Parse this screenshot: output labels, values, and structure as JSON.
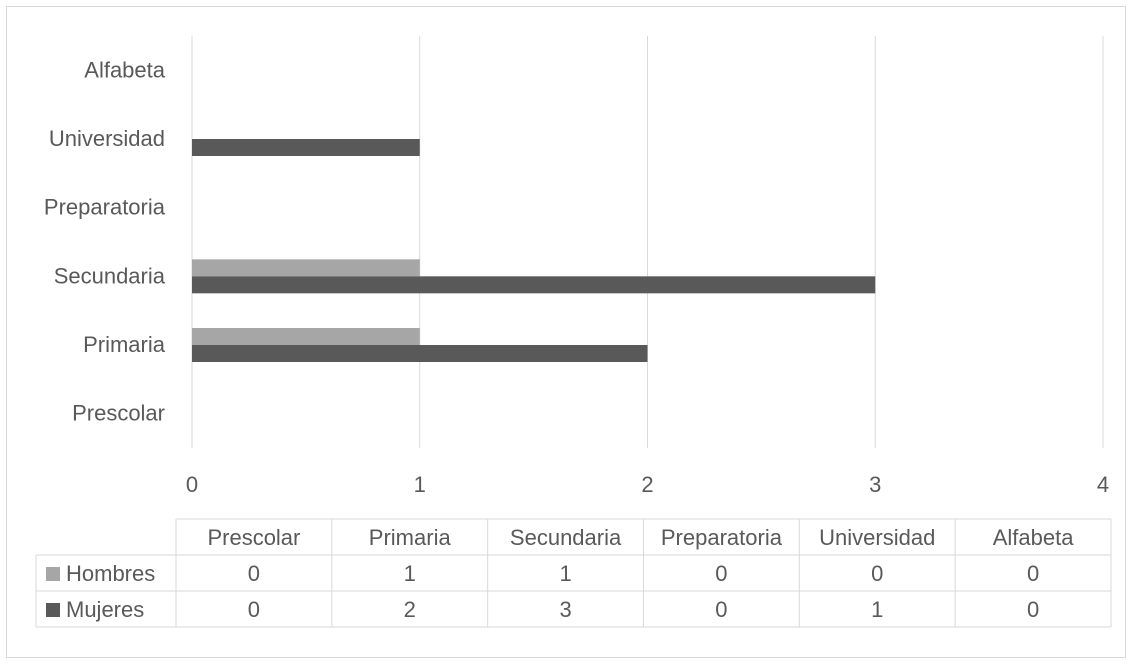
{
  "chart_data": {
    "type": "bar",
    "orientation": "horizontal",
    "categories": [
      "Prescolar",
      "Primaria",
      "Secundaria",
      "Preparatoria",
      "Universidad",
      "Alfabeta"
    ],
    "series": [
      {
        "name": "Hombres",
        "values": [
          0,
          1,
          1,
          0,
          0,
          0
        ],
        "color": "#a6a6a6"
      },
      {
        "name": "Mujeres",
        "values": [
          0,
          2,
          3,
          0,
          1,
          0
        ],
        "color": "#595959"
      }
    ],
    "xlim": [
      0,
      4
    ],
    "xticks": [
      "0",
      "1",
      "2",
      "3",
      "4"
    ],
    "grid": true,
    "legend": "data-table",
    "data_table": true
  }
}
